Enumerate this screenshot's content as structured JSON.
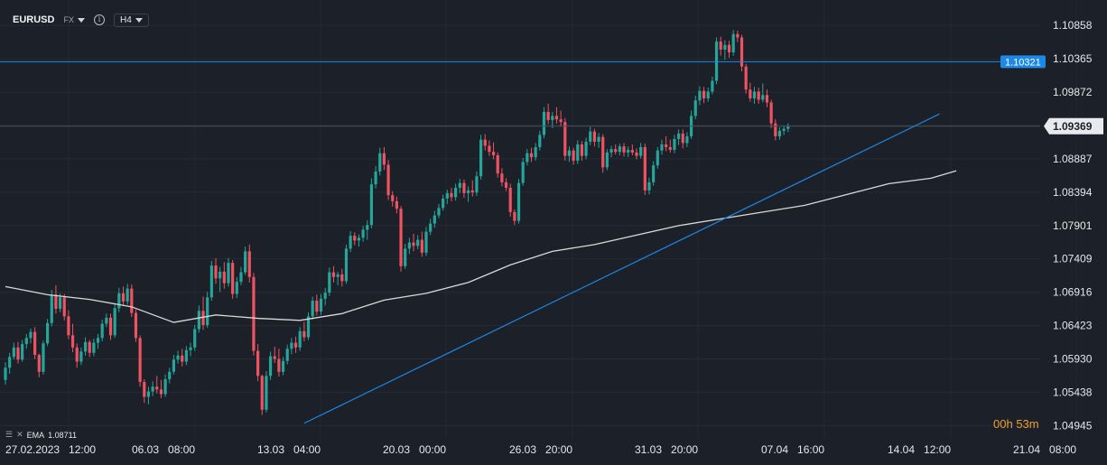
{
  "toolbar": {
    "symbol": "EURUSD",
    "market": "FX",
    "timeframe": "H4"
  },
  "indicator": {
    "name": "EMA",
    "value": "1.08711"
  },
  "countdown": {
    "hours": "00",
    "h_unit": "h",
    "minutes": "53",
    "m_unit": "m"
  },
  "colors": {
    "background": "#1b2029",
    "up": "#26a69a",
    "down": "#ef5361",
    "ema": "#d9d9d9",
    "line": "#1e88e5",
    "price_tag": "#e8eaed",
    "level_tag": "#1e88e5"
  },
  "chart_data": {
    "type": "candlestick",
    "instrument": "EURUSD",
    "timeframe": "H4",
    "ylim": [
      1.0475,
      1.111
    ],
    "y_ticks": [
      "1.10858",
      "1.10365",
      "1.09872",
      "1.09380",
      "1.08887",
      "1.08394",
      "1.07901",
      "1.07409",
      "1.06916",
      "1.06423",
      "1.05930",
      "1.05438",
      "1.04945"
    ],
    "x_ticks": [
      "27.02.2023   12:00",
      "06.03   08:00",
      "13.03   04:00",
      "20.03   00:00",
      "26.03   20:00",
      "31.03   20:00",
      "07.04   16:00",
      "14.04   12:00",
      "21.04   08:00"
    ],
    "current_price": "1.09369",
    "horizontal_level": "1.10321",
    "trendline": {
      "from_candle": 71,
      "from_price": 1.0498,
      "to_candle": 222,
      "to_price": 1.0955
    },
    "ema_label": "EMA 1.08711",
    "candles": [
      [
        1.0562,
        1.0588,
        1.0555,
        1.058
      ],
      [
        1.058,
        1.0602,
        1.0571,
        1.0596
      ],
      [
        1.0596,
        1.0617,
        1.0592,
        1.061
      ],
      [
        1.061,
        1.0618,
        1.0586,
        1.0592
      ],
      [
        1.0592,
        1.0621,
        1.0589,
        1.0615
      ],
      [
        1.0615,
        1.063,
        1.0608,
        1.0624
      ],
      [
        1.0624,
        1.0638,
        1.0616,
        1.0633
      ],
      [
        1.0633,
        1.064,
        1.0593,
        1.0599
      ],
      [
        1.0599,
        1.0601,
        1.0566,
        1.0574
      ],
      [
        1.0574,
        1.062,
        1.057,
        1.0616
      ],
      [
        1.0616,
        1.0652,
        1.0612,
        1.0646
      ],
      [
        1.0646,
        1.0695,
        1.0641,
        1.0688
      ],
      [
        1.0688,
        1.0702,
        1.066,
        1.0667
      ],
      [
        1.0667,
        1.069,
        1.0662,
        1.0684
      ],
      [
        1.0684,
        1.0689,
        1.065,
        1.0656
      ],
      [
        1.0656,
        1.0665,
        1.0622,
        1.0628
      ],
      [
        1.0628,
        1.0645,
        1.0603,
        1.061
      ],
      [
        1.061,
        1.0616,
        1.058,
        1.0589
      ],
      [
        1.0589,
        1.061,
        1.0584,
        1.0604
      ],
      [
        1.0604,
        1.0625,
        1.0598,
        1.0618
      ],
      [
        1.0618,
        1.0621,
        1.0596,
        1.0602
      ],
      [
        1.0602,
        1.0623,
        1.0597,
        1.0617
      ],
      [
        1.0617,
        1.063,
        1.0608,
        1.0624
      ],
      [
        1.0624,
        1.0651,
        1.0619,
        1.0645
      ],
      [
        1.0645,
        1.066,
        1.064,
        1.0654
      ],
      [
        1.0654,
        1.066,
        1.0621,
        1.0628
      ],
      [
        1.0628,
        1.0675,
        1.0624,
        1.0668
      ],
      [
        1.0668,
        1.0698,
        1.0662,
        1.069
      ],
      [
        1.069,
        1.07,
        1.0671,
        1.0678
      ],
      [
        1.0678,
        1.0704,
        1.0673,
        1.0697
      ],
      [
        1.0697,
        1.0703,
        1.0655,
        1.0661
      ],
      [
        1.0661,
        1.0666,
        1.0618,
        1.0624
      ],
      [
        1.0624,
        1.0628,
        1.0552,
        1.0559
      ],
      [
        1.0559,
        1.0563,
        1.0528,
        1.0537
      ],
      [
        1.0537,
        1.0552,
        1.0526,
        1.0545
      ],
      [
        1.0545,
        1.056,
        1.0538,
        1.0552
      ],
      [
        1.0552,
        1.0568,
        1.0542,
        1.0548
      ],
      [
        1.0548,
        1.0562,
        1.0535,
        1.0541
      ],
      [
        1.0541,
        1.057,
        1.0537,
        1.0563
      ],
      [
        1.0563,
        1.058,
        1.0557,
        1.0574
      ],
      [
        1.0574,
        1.0599,
        1.057,
        1.0592
      ],
      [
        1.0592,
        1.0605,
        1.0586,
        1.0598
      ],
      [
        1.0598,
        1.0608,
        1.0582,
        1.0589
      ],
      [
        1.0589,
        1.0612,
        1.0584,
        1.0606
      ],
      [
        1.0606,
        1.0617,
        1.0597,
        1.061
      ],
      [
        1.061,
        1.0643,
        1.0605,
        1.0637
      ],
      [
        1.0637,
        1.0672,
        1.0632,
        1.0664
      ],
      [
        1.0664,
        1.0685,
        1.0636,
        1.0643
      ],
      [
        1.0643,
        1.0692,
        1.0639,
        1.0684
      ],
      [
        1.0684,
        1.0738,
        1.0679,
        1.0731
      ],
      [
        1.0731,
        1.0742,
        1.0704,
        1.0712
      ],
      [
        1.0712,
        1.0729,
        1.0692,
        1.0722
      ],
      [
        1.0722,
        1.0736,
        1.0697,
        1.0705
      ],
      [
        1.0705,
        1.0742,
        1.07,
        1.0735
      ],
      [
        1.0735,
        1.0739,
        1.0682,
        1.0689
      ],
      [
        1.0689,
        1.0714,
        1.0683,
        1.0707
      ],
      [
        1.0707,
        1.0729,
        1.0702,
        1.0721
      ],
      [
        1.0721,
        1.0759,
        1.0717,
        1.0752
      ],
      [
        1.0752,
        1.0762,
        1.0706,
        1.0714
      ],
      [
        1.0714,
        1.072,
        1.0598,
        1.0605
      ],
      [
        1.0605,
        1.0615,
        1.056,
        1.0568
      ],
      [
        1.0568,
        1.057,
        1.051,
        1.0518
      ],
      [
        1.0518,
        1.0575,
        1.0514,
        1.0568
      ],
      [
        1.0568,
        1.0604,
        1.0562,
        1.0597
      ],
      [
        1.0597,
        1.0611,
        1.0587,
        1.0593
      ],
      [
        1.0593,
        1.0608,
        1.0567,
        1.0574
      ],
      [
        1.0574,
        1.0596,
        1.0569,
        1.059
      ],
      [
        1.059,
        1.0614,
        1.0585,
        1.0608
      ],
      [
        1.0608,
        1.0624,
        1.06,
        1.0617
      ],
      [
        1.0617,
        1.0626,
        1.0602,
        1.061
      ],
      [
        1.061,
        1.064,
        1.0605,
        1.0634
      ],
      [
        1.0634,
        1.0648,
        1.0619,
        1.0625
      ],
      [
        1.0625,
        1.0662,
        1.0621,
        1.0656
      ],
      [
        1.0656,
        1.0685,
        1.0651,
        1.0679
      ],
      [
        1.0679,
        1.0688,
        1.0657,
        1.0663
      ],
      [
        1.0663,
        1.0689,
        1.0658,
        1.0682
      ],
      [
        1.0682,
        1.0698,
        1.0672,
        1.0691
      ],
      [
        1.0691,
        1.0728,
        1.0686,
        1.0721
      ],
      [
        1.0721,
        1.073,
        1.0706,
        1.0714
      ],
      [
        1.0714,
        1.0722,
        1.0702,
        1.0718
      ],
      [
        1.0718,
        1.0726,
        1.07,
        1.0708
      ],
      [
        1.0708,
        1.0762,
        1.0704,
        1.0756
      ],
      [
        1.0756,
        1.0782,
        1.0751,
        1.0775
      ],
      [
        1.0775,
        1.078,
        1.0761,
        1.0768
      ],
      [
        1.0768,
        1.0777,
        1.0759,
        1.0772
      ],
      [
        1.0772,
        1.079,
        1.0766,
        1.0784
      ],
      [
        1.0784,
        1.0798,
        1.0769,
        1.0791
      ],
      [
        1.0791,
        1.086,
        1.0786,
        1.0851
      ],
      [
        1.0851,
        1.0878,
        1.0845,
        1.087
      ],
      [
        1.087,
        1.0905,
        1.0864,
        1.0897
      ],
      [
        1.0897,
        1.0906,
        1.0872,
        1.088
      ],
      [
        1.088,
        1.0887,
        1.0828,
        1.0835
      ],
      [
        1.0835,
        1.0841,
        1.0818,
        1.0826
      ],
      [
        1.0826,
        1.0833,
        1.0808,
        1.0815
      ],
      [
        1.0815,
        1.0819,
        1.0722,
        1.073
      ],
      [
        1.073,
        1.0763,
        1.0726,
        1.0756
      ],
      [
        1.0756,
        1.0772,
        1.0748,
        1.0765
      ],
      [
        1.0765,
        1.0778,
        1.0752,
        1.076
      ],
      [
        1.076,
        1.0776,
        1.0755,
        1.0769
      ],
      [
        1.0769,
        1.0781,
        1.0744,
        1.075
      ],
      [
        1.075,
        1.0788,
        1.0745,
        1.0781
      ],
      [
        1.0781,
        1.08,
        1.0776,
        1.0793
      ],
      [
        1.0793,
        1.0812,
        1.0787,
        1.0805
      ],
      [
        1.0805,
        1.0822,
        1.0801,
        1.0816
      ],
      [
        1.0816,
        1.0836,
        1.0812,
        1.083
      ],
      [
        1.083,
        1.0843,
        1.0822,
        1.0838
      ],
      [
        1.0838,
        1.0846,
        1.0826,
        1.0832
      ],
      [
        1.0832,
        1.0852,
        1.0827,
        1.0846
      ],
      [
        1.0846,
        1.0859,
        1.0838,
        1.0853
      ],
      [
        1.0853,
        1.0858,
        1.0831,
        1.0838
      ],
      [
        1.0838,
        1.0848,
        1.0825,
        1.0842
      ],
      [
        1.0842,
        1.0857,
        1.0833,
        1.0839
      ],
      [
        1.0839,
        1.087,
        1.0834,
        1.0863
      ],
      [
        1.0863,
        1.0924,
        1.0858,
        1.0917
      ],
      [
        1.0917,
        1.0925,
        1.0901,
        1.0908
      ],
      [
        1.0908,
        1.0916,
        1.0893,
        1.0899
      ],
      [
        1.0899,
        1.0913,
        1.0888,
        1.0894
      ],
      [
        1.0894,
        1.0898,
        1.0861,
        1.0867
      ],
      [
        1.0867,
        1.0875,
        1.0848,
        1.0854
      ],
      [
        1.0854,
        1.086,
        1.0841,
        1.0846
      ],
      [
        1.0846,
        1.0852,
        1.0803,
        1.081
      ],
      [
        1.081,
        1.0814,
        1.0791,
        1.0797
      ],
      [
        1.0797,
        1.0859,
        1.0793,
        1.0853
      ],
      [
        1.0853,
        1.089,
        1.0849,
        1.0884
      ],
      [
        1.0884,
        1.0903,
        1.0879,
        1.0897
      ],
      [
        1.0897,
        1.0905,
        1.0884,
        1.0891
      ],
      [
        1.0891,
        1.0912,
        1.0886,
        1.0906
      ],
      [
        1.0906,
        1.093,
        1.0901,
        1.0924
      ],
      [
        1.0924,
        1.0965,
        1.0919,
        1.0958
      ],
      [
        1.0958,
        1.097,
        1.094,
        1.0946
      ],
      [
        1.0946,
        1.0958,
        1.0934,
        1.0952
      ],
      [
        1.0952,
        1.0965,
        1.0941,
        1.0947
      ],
      [
        1.0947,
        1.096,
        1.0937,
        1.0943
      ],
      [
        1.0943,
        1.0949,
        1.0886,
        1.0893
      ],
      [
        1.0893,
        1.0907,
        1.0884,
        1.0901
      ],
      [
        1.0901,
        1.0905,
        1.088,
        1.0886
      ],
      [
        1.0886,
        1.0916,
        1.0881,
        1.091
      ],
      [
        1.091,
        1.0915,
        1.0886,
        1.0893
      ],
      [
        1.0893,
        1.092,
        1.0888,
        1.0914
      ],
      [
        1.0914,
        1.0936,
        1.0909,
        1.0929
      ],
      [
        1.0929,
        1.0933,
        1.0907,
        1.0914
      ],
      [
        1.0914,
        1.0927,
        1.0905,
        1.0921
      ],
      [
        1.0921,
        1.0925,
        1.0868,
        1.0876
      ],
      [
        1.0876,
        1.0903,
        1.0872,
        1.0898
      ],
      [
        1.0898,
        1.0908,
        1.0891,
        1.0903
      ],
      [
        1.0903,
        1.091,
        1.0895,
        1.0899
      ],
      [
        1.0899,
        1.0911,
        1.0894,
        1.0907
      ],
      [
        1.0907,
        1.0912,
        1.0892,
        1.0898
      ],
      [
        1.0898,
        1.0907,
        1.0891,
        1.0902
      ],
      [
        1.0902,
        1.091,
        1.0894,
        1.0898
      ],
      [
        1.0898,
        1.0904,
        1.0888,
        1.0893
      ],
      [
        1.0893,
        1.0912,
        1.0889,
        1.0906
      ],
      [
        1.0906,
        1.0911,
        1.0835,
        1.0842
      ],
      [
        1.0842,
        1.0861,
        1.0836,
        1.0854
      ],
      [
        1.0854,
        1.0885,
        1.0849,
        1.0879
      ],
      [
        1.0879,
        1.0906,
        1.0874,
        1.0901
      ],
      [
        1.0901,
        1.0917,
        1.0895,
        1.091
      ],
      [
        1.091,
        1.0922,
        1.09,
        1.0906
      ],
      [
        1.0906,
        1.0917,
        1.0898,
        1.0902
      ],
      [
        1.0902,
        1.0924,
        1.0897,
        1.0918
      ],
      [
        1.0918,
        1.0932,
        1.0909,
        1.0926
      ],
      [
        1.0926,
        1.0932,
        1.0904,
        1.0912
      ],
      [
        1.0912,
        1.0928,
        1.0906,
        1.0922
      ],
      [
        1.0922,
        1.096,
        1.0918,
        1.0952
      ],
      [
        1.0952,
        1.0982,
        1.0947,
        1.0975
      ],
      [
        1.0975,
        1.0996,
        1.0968,
        1.0989
      ],
      [
        1.0989,
        1.0995,
        1.0971,
        1.0978
      ],
      [
        1.0978,
        1.0994,
        1.0973,
        1.0988
      ],
      [
        1.0988,
        1.101,
        1.0984,
        1.1004
      ],
      [
        1.1004,
        1.1068,
        1.0999,
        1.1062
      ],
      [
        1.1062,
        1.1069,
        1.1041,
        1.105
      ],
      [
        1.105,
        1.1064,
        1.1035,
        1.1057
      ],
      [
        1.1057,
        1.1063,
        1.1038,
        1.1046
      ],
      [
        1.1046,
        1.1079,
        1.1041,
        1.1073
      ],
      [
        1.1073,
        1.1078,
        1.1061,
        1.1068
      ],
      [
        1.1068,
        1.1072,
        1.1018,
        1.1025
      ],
      [
        1.1025,
        1.1029,
        1.0985,
        1.0991
      ],
      [
        1.0991,
        1.1001,
        1.0973,
        1.0978
      ],
      [
        1.0978,
        1.0995,
        1.097,
        1.0988
      ],
      [
        1.0988,
        1.0994,
        1.097,
        1.0976
      ],
      [
        1.0976,
        1.1,
        1.0972,
        1.0983
      ],
      [
        1.0983,
        1.0991,
        1.0965,
        1.0972
      ],
      [
        1.0972,
        1.0976,
        1.0934,
        1.0941
      ],
      [
        1.0941,
        1.0947,
        1.0916,
        1.0922
      ],
      [
        1.0922,
        1.0935,
        1.0917,
        1.093
      ],
      [
        1.093,
        1.0938,
        1.0924,
        1.0933
      ],
      [
        1.0933,
        1.0941,
        1.0928,
        1.0937
      ]
    ],
    "ema": [
      [
        0,
        1.07
      ],
      [
        10,
        1.0688
      ],
      [
        20,
        1.0681
      ],
      [
        30,
        1.067
      ],
      [
        40,
        1.0647
      ],
      [
        50,
        1.0658
      ],
      [
        60,
        1.0653
      ],
      [
        70,
        1.065
      ],
      [
        80,
        1.066
      ],
      [
        90,
        1.068
      ],
      [
        100,
        1.069
      ],
      [
        110,
        1.0706
      ],
      [
        120,
        1.0732
      ],
      [
        130,
        1.0752
      ],
      [
        140,
        1.0762
      ],
      [
        150,
        1.0776
      ],
      [
        160,
        1.079
      ],
      [
        170,
        1.08
      ],
      [
        180,
        1.081
      ],
      [
        190,
        1.082
      ],
      [
        200,
        1.0836
      ],
      [
        210,
        1.0852
      ],
      [
        220,
        1.086
      ],
      [
        226,
        1.0871
      ]
    ]
  }
}
